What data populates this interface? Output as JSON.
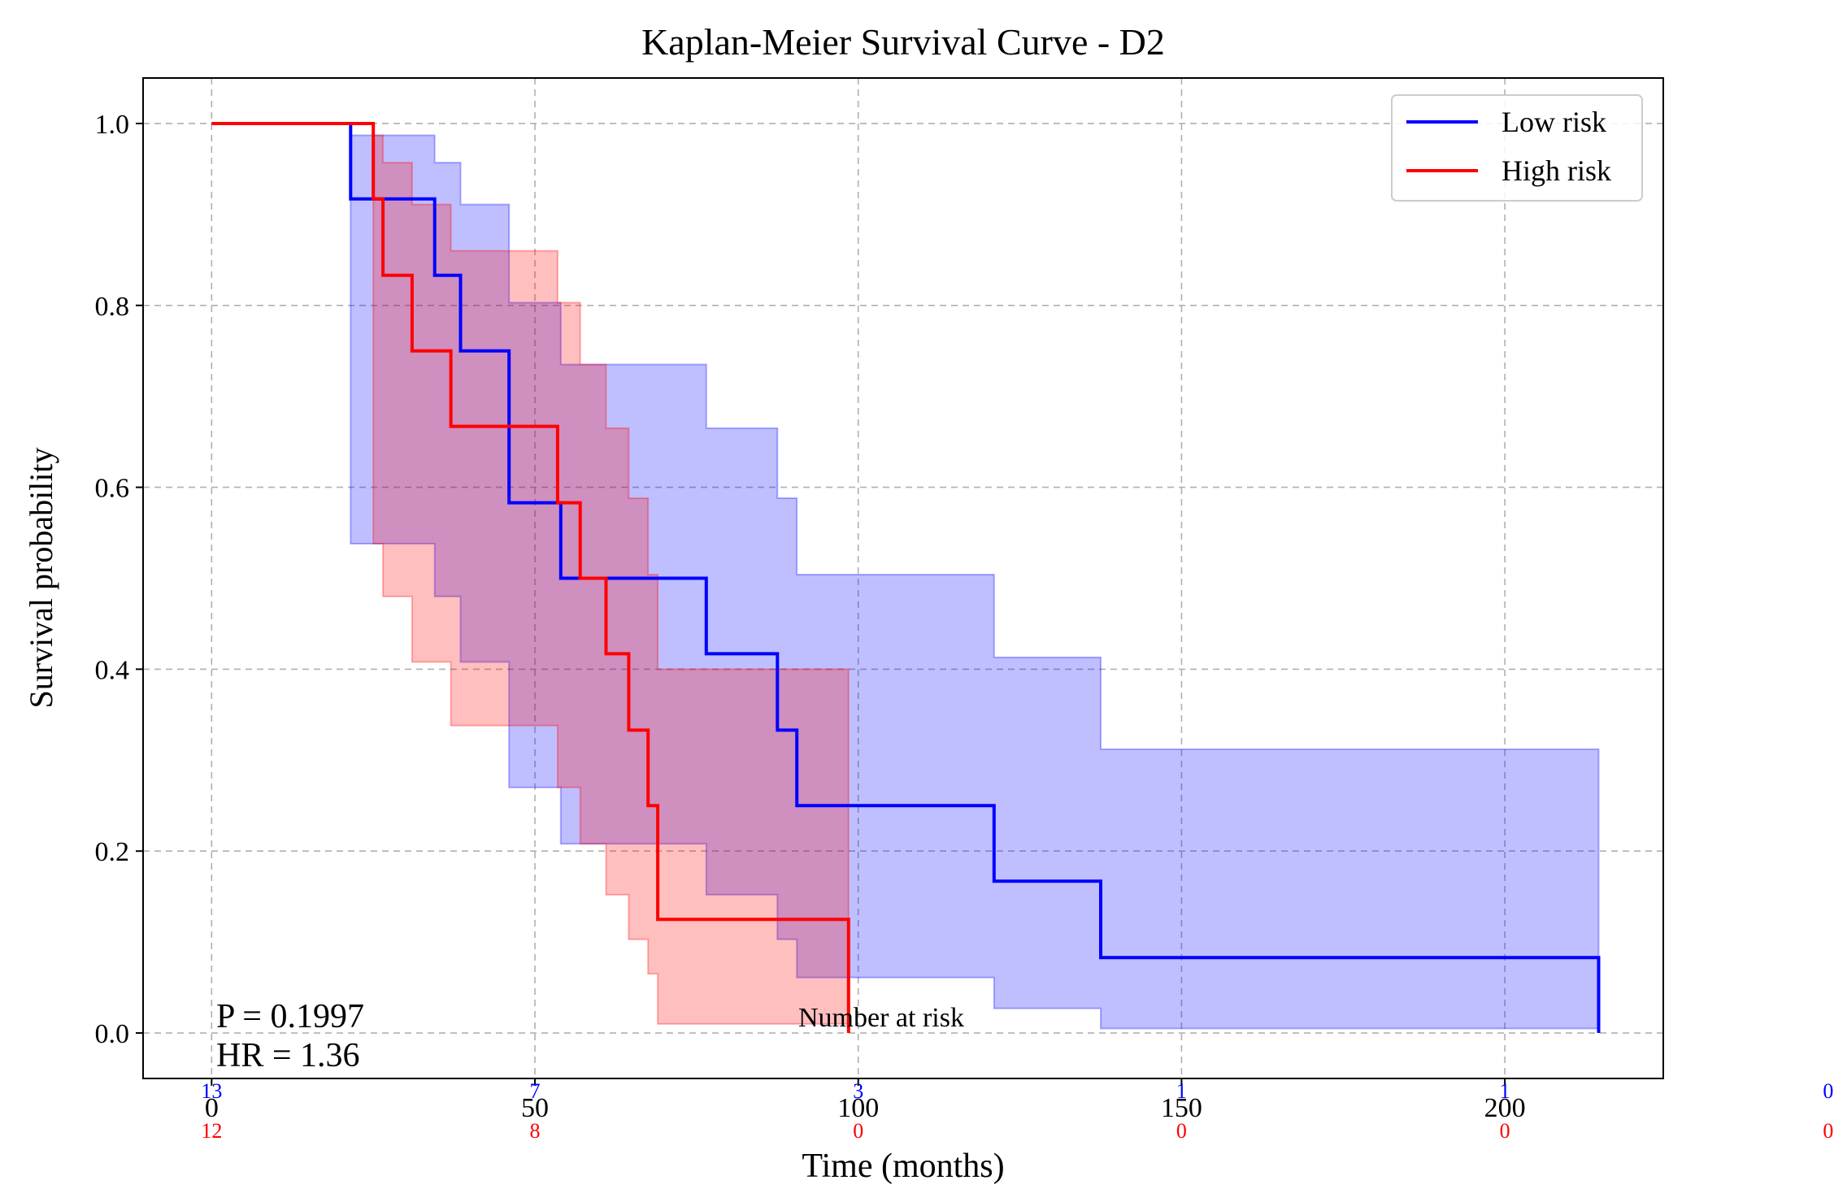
{
  "chart_data": {
    "type": "line",
    "title": "Kaplan-Meier Survival Curve - D2",
    "xlabel": "Time (months)",
    "ylabel": "Survival probability",
    "xlim": [
      -10.6,
      224.5
    ],
    "ylim": [
      -0.05,
      1.05
    ],
    "xticks": [
      0,
      50,
      100,
      150,
      200
    ],
    "xtick_labels": [
      "0",
      "50",
      "100",
      "150",
      "200"
    ],
    "yticks": [
      0.0,
      0.2,
      0.4,
      0.6,
      0.8,
      1.0
    ],
    "ytick_labels": [
      "0.0",
      "0.2",
      "0.4",
      "0.6",
      "0.8",
      "1.0"
    ],
    "grid": true,
    "legend_position": "top-right",
    "series": [
      {
        "name": "Low risk",
        "color": "#0000ff",
        "fill": "#0000ff",
        "steps": [
          [
            0,
            1.0
          ],
          [
            21.5,
            0.917
          ],
          [
            34.5,
            0.833
          ],
          [
            38.5,
            0.75
          ],
          [
            46,
            0.583
          ],
          [
            54,
            0.5
          ],
          [
            76.5,
            0.417
          ],
          [
            87.5,
            0.333
          ],
          [
            90.5,
            0.25
          ],
          [
            121,
            0.167
          ],
          [
            137.5,
            0.083
          ],
          [
            214.5,
            0.0
          ]
        ],
        "ci_upper": [
          [
            0,
            1.0
          ],
          [
            21.5,
            0.987
          ],
          [
            34.5,
            0.957
          ],
          [
            38.5,
            0.911
          ],
          [
            46,
            0.803
          ],
          [
            54,
            0.735
          ],
          [
            76.5,
            0.665
          ],
          [
            87.5,
            0.588
          ],
          [
            90.5,
            0.504
          ],
          [
            121,
            0.413
          ],
          [
            137.5,
            0.312
          ],
          [
            214.5,
            0.312
          ]
        ],
        "ci_lower": [
          [
            0,
            1.0
          ],
          [
            21.5,
            0.538
          ],
          [
            34.5,
            0.48
          ],
          [
            38.5,
            0.408
          ],
          [
            46,
            0.27
          ],
          [
            54,
            0.208
          ],
          [
            76.5,
            0.152
          ],
          [
            87.5,
            0.103
          ],
          [
            90.5,
            0.061
          ],
          [
            121,
            0.027
          ],
          [
            137.5,
            0.005
          ],
          [
            214.5,
            0.005
          ]
        ]
      },
      {
        "name": "High risk",
        "color": "#ff0000",
        "fill": "#ff0000",
        "steps": [
          [
            0,
            1.0
          ],
          [
            25,
            0.917
          ],
          [
            26.5,
            0.833
          ],
          [
            31,
            0.75
          ],
          [
            37,
            0.667
          ],
          [
            53.5,
            0.583
          ],
          [
            57,
            0.5
          ],
          [
            61,
            0.417
          ],
          [
            64.5,
            0.333
          ],
          [
            67.5,
            0.25
          ],
          [
            69,
            0.125
          ],
          [
            98.5,
            0.0
          ]
        ],
        "ci_upper": [
          [
            0,
            1.0
          ],
          [
            25,
            0.987
          ],
          [
            26.5,
            0.957
          ],
          [
            31,
            0.911
          ],
          [
            37,
            0.86
          ],
          [
            53.5,
            0.803
          ],
          [
            57,
            0.735
          ],
          [
            61,
            0.665
          ],
          [
            64.5,
            0.588
          ],
          [
            67.5,
            0.504
          ],
          [
            69,
            0.4
          ],
          [
            98.5,
            0.4
          ]
        ],
        "ci_lower": [
          [
            0,
            1.0
          ],
          [
            25,
            0.538
          ],
          [
            26.5,
            0.48
          ],
          [
            31,
            0.408
          ],
          [
            37,
            0.338
          ],
          [
            53.5,
            0.27
          ],
          [
            57,
            0.208
          ],
          [
            61,
            0.152
          ],
          [
            64.5,
            0.103
          ],
          [
            67.5,
            0.065
          ],
          [
            69,
            0.01
          ],
          [
            98.5,
            0.01
          ]
        ]
      }
    ],
    "annotations": [
      {
        "text": "P = 0.1997"
      },
      {
        "text": "HR = 1.36"
      },
      {
        "text": "Number at risk"
      }
    ],
    "at_risk": {
      "times": [
        0,
        50,
        100,
        150,
        200,
        250
      ],
      "low": [
        "13",
        "7",
        "3",
        "1",
        "1",
        "0"
      ],
      "high": [
        "12",
        "8",
        "0",
        "0",
        "0",
        "0"
      ]
    }
  }
}
